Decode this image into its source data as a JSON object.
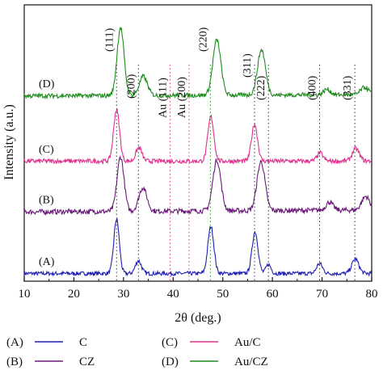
{
  "chart_data": {
    "type": "line",
    "title": "",
    "xlabel": "2θ (deg.)",
    "ylabel": "Intensity (a.u.)",
    "xlim": [
      10,
      80
    ],
    "xticks": [
      10,
      20,
      30,
      40,
      50,
      60,
      70,
      80
    ],
    "yticks_shown": false,
    "grid": false,
    "legend_position": "bottom",
    "series": [
      {
        "name": "C",
        "marker": "(A)",
        "color": "#1f1fb4",
        "offset": 0,
        "baseline": 0.35,
        "slope": 0.0,
        "noise": 0.22,
        "peaks": [
          [
            28.6,
            6.0,
            0.55
          ],
          [
            33.0,
            1.4,
            0.6
          ],
          [
            47.6,
            5.2,
            0.6
          ],
          [
            56.5,
            4.6,
            0.6
          ],
          [
            59.2,
            1.0,
            0.5
          ],
          [
            69.5,
            1.1,
            0.6
          ],
          [
            76.7,
            1.6,
            0.7
          ]
        ]
      },
      {
        "name": "CZ",
        "marker": "(B)",
        "color": "#6b1a7a",
        "offset": 6.8,
        "baseline": 0.35,
        "slope": 0.03,
        "noise": 0.28,
        "peaks": [
          [
            29.4,
            6.0,
            0.7
          ],
          [
            33.9,
            2.6,
            0.8
          ],
          [
            48.8,
            5.6,
            0.8
          ],
          [
            57.7,
            5.4,
            0.8
          ],
          [
            71.5,
            0.9,
            0.7
          ],
          [
            78.8,
            1.5,
            0.8
          ]
        ]
      },
      {
        "name": "Au/C",
        "marker": "(C)",
        "color": "#e0308c",
        "offset": 12.4,
        "baseline": 0.35,
        "slope": 0.0,
        "noise": 0.25,
        "peaks": [
          [
            28.6,
            5.7,
            0.6
          ],
          [
            33.1,
            1.5,
            0.6
          ],
          [
            47.6,
            4.9,
            0.6
          ],
          [
            56.4,
            4.1,
            0.6
          ],
          [
            69.6,
            0.9,
            0.6
          ],
          [
            76.8,
            1.4,
            0.7
          ]
        ]
      },
      {
        "name": "Au/CZ",
        "marker": "(D)",
        "color": "#1e8c1e",
        "offset": 19.6,
        "baseline": 0.35,
        "slope": 0.02,
        "noise": 0.25,
        "peaks": [
          [
            29.4,
            7.5,
            0.7
          ],
          [
            34.0,
            2.1,
            0.8
          ],
          [
            48.8,
            6.1,
            0.8
          ],
          [
            57.8,
            5.0,
            0.8
          ],
          [
            71.0,
            0.6,
            0.7
          ],
          [
            78.6,
            0.8,
            0.8
          ]
        ]
      }
    ],
    "reflections": [
      {
        "label": "(111)",
        "x": 28.6,
        "color": "#333333"
      },
      {
        "label": "(200)",
        "x": 33.0,
        "color": "#333333"
      },
      {
        "label": "Au (111)",
        "x": 39.4,
        "color": "#e0308c"
      },
      {
        "label": "Au (200)",
        "x": 43.2,
        "color": "#e0308c"
      },
      {
        "label": "(220)",
        "x": 47.5,
        "color": "#1e8c1e"
      },
      {
        "label": "(311)",
        "x": 56.4,
        "color": "#333333"
      },
      {
        "label": "(222)",
        "x": 59.2,
        "color": "#333333"
      },
      {
        "label": "(400)",
        "x": 69.5,
        "color": "#333333"
      },
      {
        "label": "(331)",
        "x": 76.6,
        "color": "#333333"
      }
    ]
  }
}
